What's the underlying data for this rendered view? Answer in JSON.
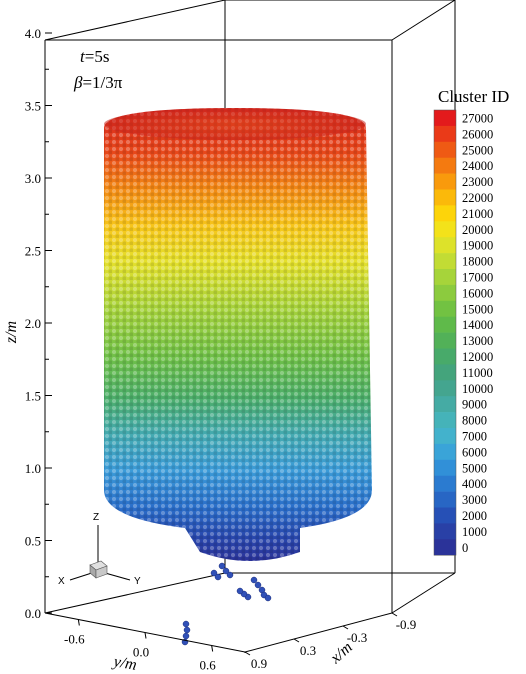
{
  "chart_data": {
    "type": "scatter",
    "subtype": "3d-particle-scatter",
    "annotation": {
      "t_label": "t",
      "t_value": "=5s",
      "beta_label": "β",
      "beta_value": "=1/3π"
    },
    "axes": {
      "z": {
        "label": "z/m",
        "ticks": [
          "0.0",
          "0.5",
          "1.0",
          "1.5",
          "2.0",
          "2.5",
          "3.0",
          "3.5",
          "4.0"
        ],
        "range": [
          0,
          4.0
        ]
      },
      "y": {
        "label": "y/m",
        "ticks": [
          "-0.6",
          "0.0",
          "0.6"
        ],
        "range": [
          -0.9,
          0.9
        ]
      },
      "x": {
        "label": "x/m",
        "ticks": [
          "0.9",
          "0.3",
          "-0.3",
          "-0.9"
        ],
        "range": [
          -0.9,
          0.9
        ]
      }
    },
    "colorbar": {
      "title": "Cluster ID",
      "placement": "right",
      "levels": [
        "27000",
        "26000",
        "25000",
        "24000",
        "23000",
        "22000",
        "21000",
        "20000",
        "19000",
        "18000",
        "17000",
        "16000",
        "15000",
        "14000",
        "13000",
        "12000",
        "11000",
        "10000",
        "9000",
        "8000",
        "7000",
        "6000",
        "5000",
        "4000",
        "3000",
        "2000",
        "1000",
        "0"
      ],
      "colors": [
        "#e31a1c",
        "#ea3a18",
        "#ef5a14",
        "#f47a10",
        "#f99a0c",
        "#fbb90a",
        "#fdd40a",
        "#f3e21a",
        "#dde22a",
        "#c2dc34",
        "#a6d43a",
        "#8ccb3e",
        "#72c242",
        "#5fba4a",
        "#52b158",
        "#48aa6a",
        "#44a47c",
        "#44a58f",
        "#45aba4",
        "#45b3b9",
        "#43b2cc",
        "#3aa4d8",
        "#3190d8",
        "#2b7bd0",
        "#2866c4",
        "#2650b6",
        "#2940a6",
        "#2b3399"
      ]
    },
    "triad": {
      "z": "Z",
      "x": "X",
      "y": "Y"
    },
    "grid": true
  }
}
